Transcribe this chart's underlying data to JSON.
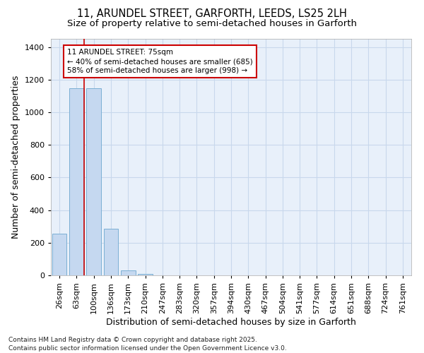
{
  "title_line1": "11, ARUNDEL STREET, GARFORTH, LEEDS, LS25 2LH",
  "title_line2": "Size of property relative to semi-detached houses in Garforth",
  "xlabel": "Distribution of semi-detached houses by size in Garforth",
  "ylabel": "Number of semi-detached properties",
  "categories": [
    "26sqm",
    "63sqm",
    "100sqm",
    "136sqm",
    "173sqm",
    "210sqm",
    "247sqm",
    "283sqm",
    "320sqm",
    "357sqm",
    "394sqm",
    "430sqm",
    "467sqm",
    "504sqm",
    "541sqm",
    "577sqm",
    "614sqm",
    "651sqm",
    "688sqm",
    "724sqm",
    "761sqm"
  ],
  "values": [
    255,
    1145,
    1145,
    285,
    30,
    10,
    0,
    0,
    0,
    0,
    0,
    0,
    0,
    0,
    0,
    0,
    0,
    0,
    0,
    0,
    0
  ],
  "bar_color": "#c5d8f0",
  "bar_edge_color": "#7bafd4",
  "grid_color": "#c8d8ec",
  "background_color": "#e8f0fa",
  "vline_color": "#cc0000",
  "vline_x_index": 1,
  "annotation_box_text": "11 ARUNDEL STREET: 75sqm\n← 40% of semi-detached houses are smaller (685)\n58% of semi-detached houses are larger (998) →",
  "footnote": "Contains HM Land Registry data © Crown copyright and database right 2025.\nContains public sector information licensed under the Open Government Licence v3.0.",
  "ylim": [
    0,
    1450
  ],
  "title_fontsize": 10.5,
  "subtitle_fontsize": 9.5,
  "axis_label_fontsize": 9,
  "tick_fontsize": 8,
  "annotation_fontsize": 7.5,
  "footnote_fontsize": 6.5
}
